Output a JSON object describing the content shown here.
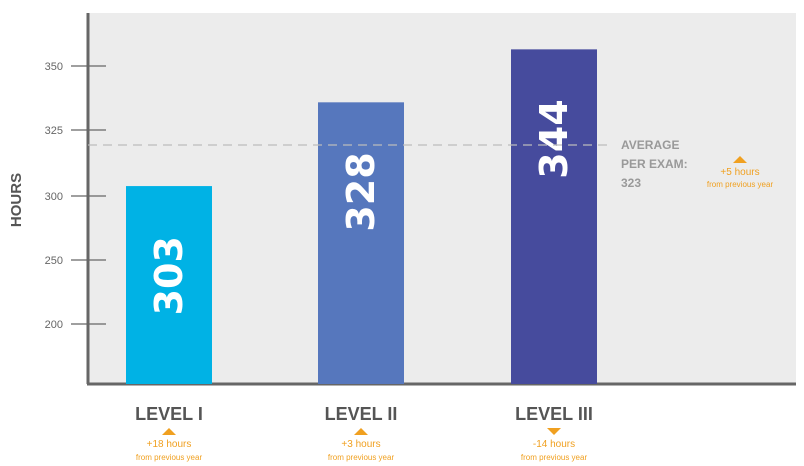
{
  "chart_data": {
    "type": "bar",
    "ylabel": "HOURS",
    "categories": [
      "LEVEL I",
      "LEVEL II",
      "LEVEL III"
    ],
    "values": [
      303,
      328,
      344
    ],
    "value_labels": [
      "303",
      "328",
      "344"
    ],
    "colors": [
      "#00b2e5",
      "#5677bd",
      "#464b9d"
    ],
    "y_ticks": [
      {
        "label": "350",
        "value": 350
      },
      {
        "label": "325",
        "value": 325
      },
      {
        "label": "300",
        "value": 300
      },
      {
        "label": "250",
        "value": 250
      },
      {
        "label": "200",
        "value": 200
      }
    ],
    "grid": false,
    "average": {
      "value": 323,
      "line1": "AVERAGE",
      "line2": "PER EXAM:",
      "line3": "323",
      "change_direction": "up",
      "change_text": "+5 hours",
      "change_sub": "from previous year"
    },
    "changes": [
      {
        "direction": "up",
        "text": "+18 hours",
        "sub": "from previous year"
      },
      {
        "direction": "up",
        "text": "+3 hours",
        "sub": "from previous year"
      },
      {
        "direction": "down",
        "text": "-14 hours",
        "sub": "from previous year"
      }
    ],
    "accent_color": "#f0a020",
    "plot_background": "#ececec"
  }
}
